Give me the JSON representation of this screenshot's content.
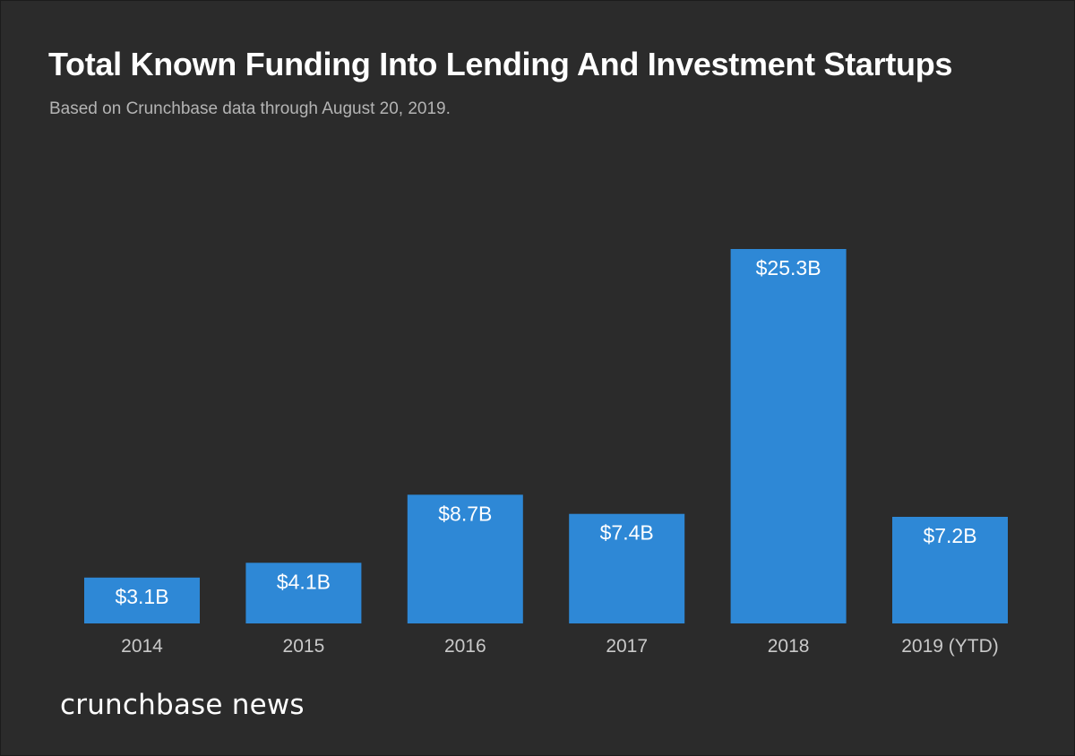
{
  "chart_data": {
    "type": "bar",
    "title": "Total Known Funding Into Lending And Investment Startups",
    "subtitle": "Based on Crunchbase data through August 20, 2019.",
    "categories": [
      "2014",
      "2015",
      "2016",
      "2017",
      "2018",
      "2019 (YTD)"
    ],
    "values": [
      3.1,
      4.1,
      8.7,
      7.4,
      25.3,
      7.2
    ],
    "data_labels": [
      "$3.1B",
      "$4.1B",
      "$8.7B",
      "$7.4B",
      "$25.3B",
      "$7.2B"
    ],
    "unit": "$B",
    "xlabel": "",
    "ylabel": "",
    "ylim": [
      0,
      25.3
    ],
    "grid": false,
    "legend": "none",
    "bar_color": "#2e88d6",
    "background_color": "#2b2b2b"
  },
  "brand": {
    "name": "crunchbase news",
    "color": "#ffffff"
  }
}
